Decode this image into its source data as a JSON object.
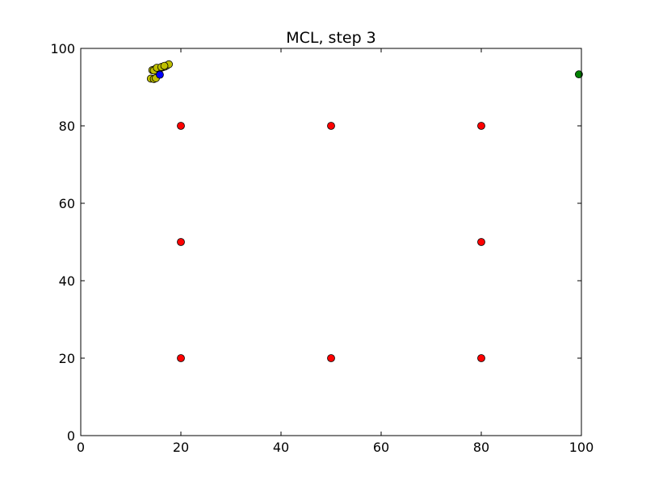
{
  "chart_data": {
    "type": "scatter",
    "title": "MCL, step 3",
    "xlabel": "",
    "ylabel": "",
    "xlim": [
      0,
      100
    ],
    "ylim": [
      0,
      100
    ],
    "xticks": [
      0,
      20,
      40,
      60,
      80,
      100
    ],
    "yticks": [
      0,
      20,
      40,
      60,
      80,
      100
    ],
    "grid": false,
    "series": [
      {
        "name": "landmarks",
        "color": "#ff0000",
        "points": [
          [
            20,
            80
          ],
          [
            50,
            80
          ],
          [
            80,
            80
          ],
          [
            20,
            50
          ],
          [
            80,
            50
          ],
          [
            20,
            20
          ],
          [
            50,
            20
          ],
          [
            80,
            20
          ]
        ]
      },
      {
        "name": "particles",
        "color": "#bfbf00",
        "points": [
          [
            14.0,
            92.2
          ],
          [
            14.6,
            92.1
          ],
          [
            15.0,
            92.3
          ],
          [
            14.3,
            94.4
          ],
          [
            14.8,
            94.6
          ],
          [
            15.4,
            94.7
          ],
          [
            15.9,
            94.9
          ],
          [
            16.3,
            95.1
          ],
          [
            16.8,
            95.3
          ],
          [
            17.2,
            95.6
          ],
          [
            17.6,
            95.9
          ],
          [
            14.6,
            94.3
          ],
          [
            15.2,
            95.0
          ],
          [
            16.1,
            95.2
          ],
          [
            16.7,
            95.5
          ]
        ]
      },
      {
        "name": "estimate",
        "color": "#0000ff",
        "points": [
          [
            15.8,
            93.2
          ]
        ]
      },
      {
        "name": "robot",
        "color": "#008000",
        "points": [
          [
            99.5,
            93.3
          ]
        ]
      }
    ]
  }
}
